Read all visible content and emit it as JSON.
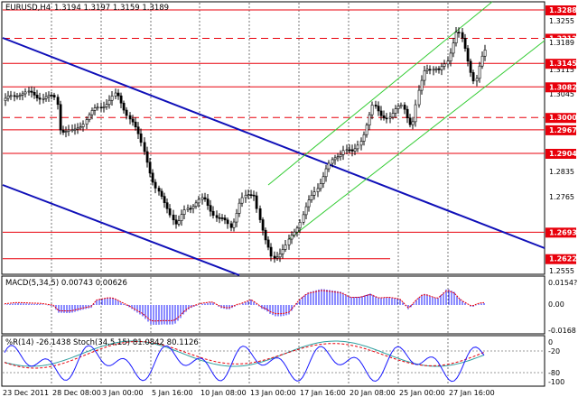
{
  "chart": {
    "header": {
      "symbol": "EURUSD,H4",
      "ohlc": "1.3194 1.3197 1.3159 1.3189"
    },
    "current_price": "1.3189",
    "price_axis": {
      "ticks": [
        "1.3255",
        "1.3115",
        "1.3045",
        "1.2835",
        "1.2765",
        "1.2555"
      ]
    },
    "levels": [
      {
        "label": "1.3288",
        "value": 1.3288,
        "style": "solid"
      },
      {
        "label": "1.3212",
        "value": 1.3212,
        "style": "dashed"
      },
      {
        "label": "1.3145",
        "value": 1.3145,
        "style": "solid"
      },
      {
        "label": "1.3082",
        "value": 1.3082,
        "style": "solid"
      },
      {
        "label": "1.3000",
        "value": 1.3,
        "style": "dashed"
      },
      {
        "label": "1.2967",
        "value": 1.2967,
        "style": "solid"
      },
      {
        "label": "1.2904",
        "value": 1.2904,
        "style": "solid"
      },
      {
        "label": "1.2693",
        "value": 1.2693,
        "style": "solid"
      },
      {
        "label": "1.2622",
        "value": 1.2622,
        "style": "solid"
      }
    ],
    "level_color": "#e8000b",
    "trend_color": "#1010b8",
    "channel_color": "#33cc33",
    "candle_color": "#000000"
  },
  "macd": {
    "label": "MACD(5,34,5) 0.00743 0.00626",
    "axis": [
      "0.0154?",
      "0.00",
      "-0.0168"
    ],
    "bar_color": "#1a1aff",
    "signal_color": "#e8000b"
  },
  "stoch": {
    "label": "%R(14) -26.1438  Stoch(34,5,15) 81.0842 80.1126",
    "axis": [
      "0",
      "-20",
      "-80",
      "-100"
    ],
    "r_color": "#1a1aff",
    "k_color": "#30a0a0",
    "d_color": "#e8000b"
  },
  "time_axis": {
    "labels": [
      "23 Dec 2011",
      "28 Dec 08:00",
      "3 Jan 00:00",
      "5 Jan 16:00",
      "10 Jan 08:00",
      "13 Jan 00:00",
      "17 Jan 16:00",
      "20 Jan 08:00",
      "25 Jan 00:00",
      "27 Jan 16:00"
    ]
  }
}
